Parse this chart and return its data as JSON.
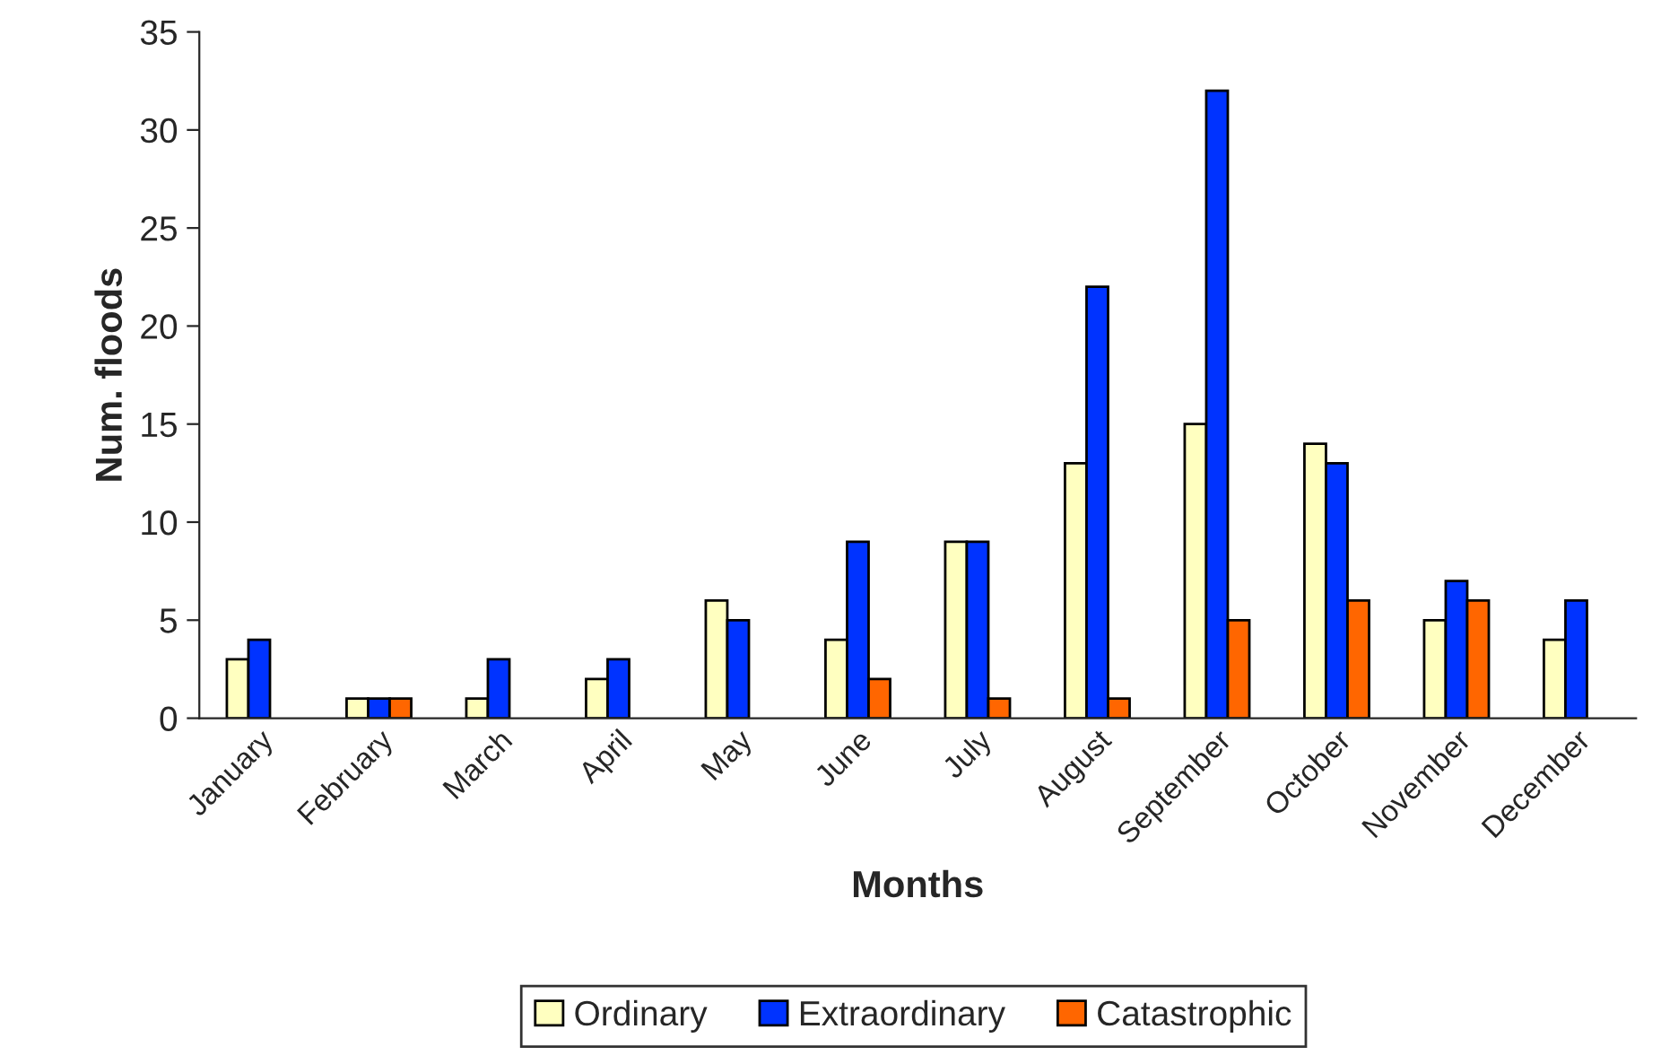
{
  "chart_data": {
    "type": "bar",
    "xlabel": "Months",
    "ylabel": "Num. floods",
    "categories": [
      "January",
      "February",
      "March",
      "April",
      "May",
      "June",
      "July",
      "August",
      "September",
      "October",
      "November",
      "December"
    ],
    "series": [
      {
        "name": "Ordinary",
        "color": "#ffffc0",
        "values": [
          3,
          1,
          1,
          2,
          6,
          4,
          9,
          13,
          15,
          14,
          5,
          4
        ]
      },
      {
        "name": "Extraordinary",
        "color": "#0033ff",
        "values": [
          4,
          1,
          3,
          3,
          5,
          9,
          9,
          22,
          32,
          13,
          7,
          6
        ]
      },
      {
        "name": "Catastrophic",
        "color": "#ff6600",
        "values": [
          null,
          1,
          null,
          null,
          null,
          2,
          1,
          1,
          5,
          6,
          6,
          null
        ]
      }
    ],
    "ylim": [
      0,
      35
    ],
    "yticks": [
      0,
      5,
      10,
      15,
      20,
      25,
      30,
      35
    ],
    "grid": false,
    "legend": "bottom"
  }
}
